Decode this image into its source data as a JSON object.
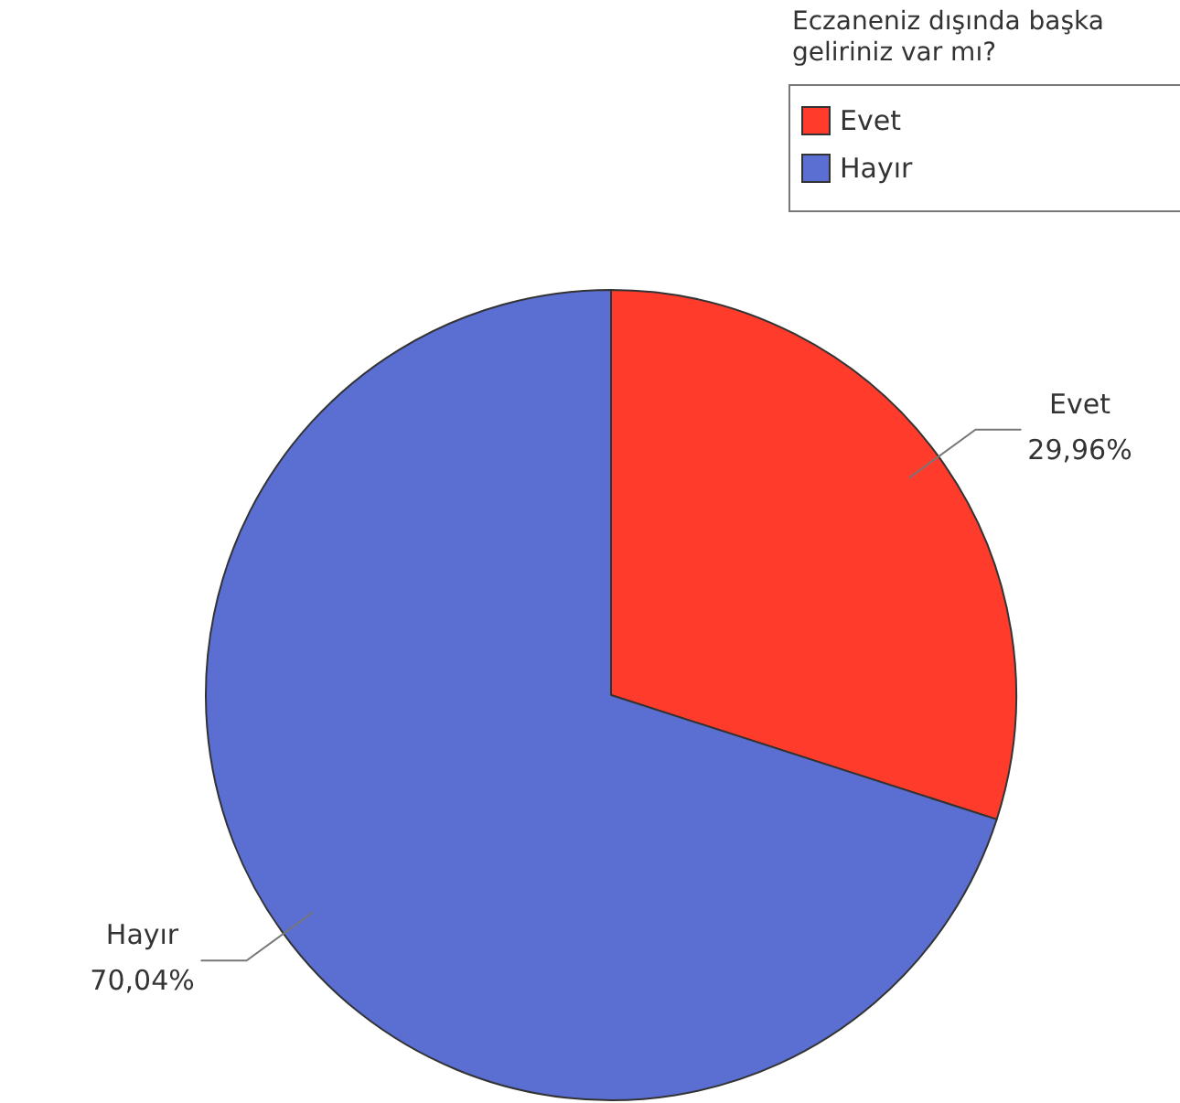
{
  "chart_data": {
    "type": "pie",
    "legend_title": "Eczaneniz dışında başka geliriniz var mı?",
    "legend": "top right",
    "categories": [
      "Evet",
      "Hayır"
    ],
    "values": [
      29.96,
      70.04
    ],
    "colors": [
      "#ff3b2b",
      "#5a6fd1"
    ],
    "value_labels": [
      "29,96%",
      "70,04%"
    ]
  }
}
